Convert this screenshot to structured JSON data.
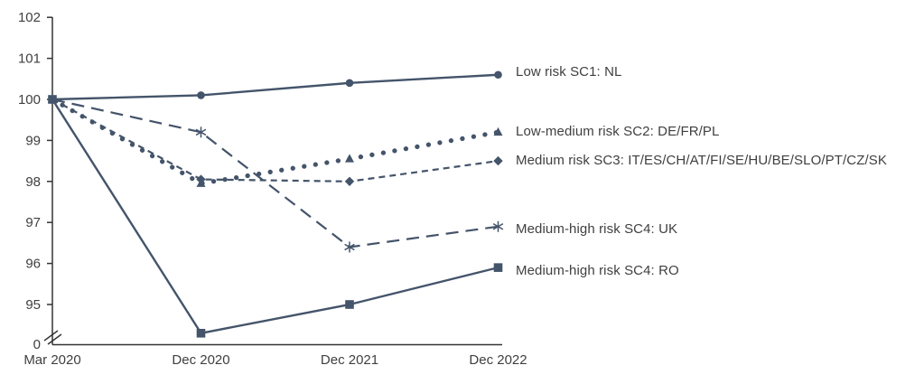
{
  "chart_data": {
    "type": "line",
    "title": "",
    "xlabel": "",
    "ylabel": "",
    "categories": [
      "Mar 2020",
      "Dec 2020",
      "Dec 2021",
      "Dec 2022"
    ],
    "y_ticks": [
      102,
      101,
      100,
      99,
      98,
      97,
      96,
      95
    ],
    "y_axis_break_label": "0",
    "ylim": [
      94,
      102
    ],
    "grid": false,
    "legend_position": "direct-labels-right",
    "colors": {
      "series_line": "#44546A",
      "axis": "#333333",
      "tick_text": "#3f3f3f"
    },
    "series": [
      {
        "label": "Low risk SC1: NL",
        "values": [
          100,
          100.1,
          100.4,
          100.6
        ],
        "line_style": "solid",
        "marker": "circle"
      },
      {
        "label": "Low-medium risk SC2: DE/FR/PL",
        "values": [
          100,
          97.95,
          98.55,
          99.2
        ],
        "line_style": "dotted",
        "marker": "triangle"
      },
      {
        "label": "Medium risk SC3: IT/ES/CH/AT/FI/SE/HU/BE/SLO/PT/CZ/SK",
        "values": [
          100,
          98.05,
          98.0,
          98.5
        ],
        "line_style": "short-dash",
        "marker": "diamond"
      },
      {
        "label": "Medium-high risk SC4: UK",
        "values": [
          100,
          99.2,
          96.4,
          96.9
        ],
        "line_style": "long-dash",
        "marker": "asterisk"
      },
      {
        "label": "Medium-high risk SC4: RO",
        "values": [
          100,
          94.3,
          95.0,
          95.9
        ],
        "line_style": "solid",
        "marker": "square"
      }
    ]
  }
}
